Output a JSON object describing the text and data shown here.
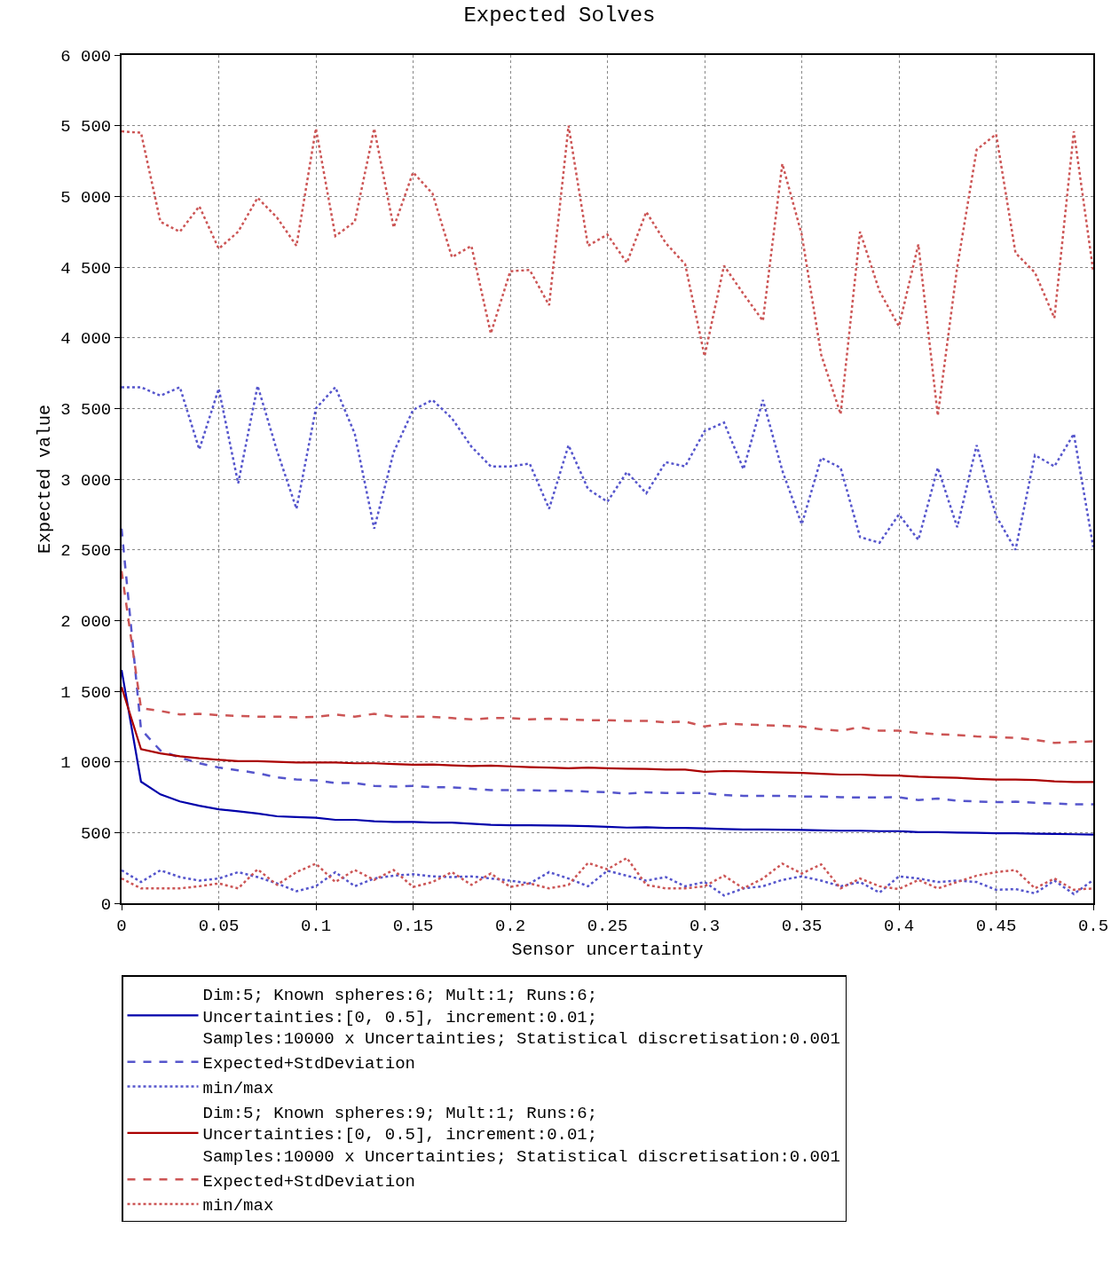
{
  "chart_data": {
    "type": "line",
    "title": "Expected Solves",
    "xlabel": "Sensor uncertainty",
    "ylabel": "Expected value",
    "x": [
      0,
      0.01,
      0.02,
      0.03,
      0.04,
      0.05,
      0.06,
      0.07,
      0.08,
      0.09,
      0.1,
      0.11,
      0.12,
      0.13,
      0.14,
      0.15,
      0.16,
      0.17,
      0.18,
      0.19,
      0.2,
      0.21,
      0.22,
      0.23,
      0.24,
      0.25,
      0.26,
      0.27,
      0.28,
      0.29,
      0.3,
      0.31,
      0.32,
      0.33,
      0.34,
      0.35,
      0.36,
      0.37,
      0.38,
      0.39,
      0.4,
      0.41,
      0.42,
      0.43,
      0.44,
      0.45,
      0.46,
      0.47,
      0.48,
      0.49,
      0.5
    ],
    "xlim": [
      0,
      0.5
    ],
    "xticks": [
      0,
      0.05,
      0.1,
      0.15,
      0.2,
      0.25,
      0.3,
      0.35,
      0.4,
      0.45,
      0.5
    ],
    "ylim": [
      0,
      6000
    ],
    "yticks": [
      0,
      500,
      {
        "value": 1000,
        "label": "1 000"
      },
      {
        "value": 1500,
        "label": "1 500"
      },
      {
        "value": 2000,
        "label": "2 000"
      },
      {
        "value": 2500,
        "label": "2 500"
      },
      {
        "value": 3000,
        "label": "3 000"
      },
      {
        "value": 3500,
        "label": "3 500"
      },
      {
        "value": 4000,
        "label": "4 000"
      },
      {
        "value": 4500,
        "label": "4 500"
      },
      {
        "value": 5000,
        "label": "5 000"
      },
      {
        "value": 5500,
        "label": "5 500"
      },
      {
        "value": 6000,
        "label": "6 000"
      }
    ],
    "grid": true,
    "legend": "bottom",
    "marker": "none",
    "series": [
      {
        "name": "Dim:5; Known spheres:6; Mult:1; Runs:6;\nUncertainties:[0, 0.5], increment:0.01;\nSamples:10000 x Uncertainties; Statistical discretisation:0.001",
        "color": "#0000aa",
        "line_style": "solid",
        "values": [
          1650,
          860,
          770,
          720,
          690,
          665,
          650,
          635,
          615,
          610,
          605,
          590,
          590,
          580,
          575,
          575,
          570,
          570,
          562,
          555,
          552,
          552,
          550,
          548,
          545,
          540,
          535,
          537,
          533,
          533,
          530,
          525,
          522,
          522,
          520,
          518,
          515,
          513,
          513,
          510,
          510,
          503,
          503,
          500,
          498,
          495,
          495,
          492,
          490,
          488,
          485
        ]
      },
      {
        "name": "Expected+StdDeviation",
        "color": "#5555cc",
        "line_style": "dashed",
        "values": [
          2650,
          1230,
          1080,
          1030,
          990,
          960,
          940,
          920,
          890,
          875,
          870,
          850,
          850,
          830,
          825,
          830,
          820,
          820,
          810,
          800,
          800,
          800,
          795,
          795,
          790,
          785,
          775,
          785,
          780,
          780,
          780,
          765,
          760,
          760,
          760,
          755,
          755,
          750,
          748,
          748,
          750,
          730,
          740,
          725,
          720,
          715,
          718,
          710,
          705,
          700,
          700
        ]
      },
      {
        "name": "min/max",
        "color": "#5555cc",
        "line_style": "dotted",
        "values": [
          3650,
          3650,
          3590,
          3650,
          3210,
          3640,
          2970,
          3660,
          3200,
          2790,
          3500,
          3650,
          3320,
          2650,
          3190,
          3490,
          3560,
          3430,
          3230,
          3090,
          3090,
          3110,
          2790,
          3240,
          2930,
          2840,
          3050,
          2900,
          3120,
          3090,
          3340,
          3400,
          3070,
          3560,
          3060,
          2680,
          3150,
          3080,
          2590,
          2550,
          2750,
          2570,
          3080,
          2660,
          3240,
          2740,
          2500,
          3170,
          3090,
          3320,
          2520
        ]
      },
      {
        "color": "#5555cc",
        "line_style": "dotted",
        "values": [
          233,
          150,
          233,
          185,
          160,
          175,
          220,
          185,
          140,
          85,
          120,
          220,
          120,
          175,
          195,
          205,
          190,
          185,
          190,
          175,
          160,
          140,
          220,
          175,
          120,
          230,
          195,
          160,
          185,
          120,
          150,
          55,
          105,
          120,
          165,
          190,
          160,
          120,
          150,
          75,
          190,
          175,
          150,
          160,
          150,
          95,
          100,
          70,
          160,
          65,
          165
        ]
      },
      {
        "name": "Dim:5; Known spheres:9; Mult:1; Runs:6;\nUncertainties:[0, 0.5], increment:0.01;\nSamples:10000 x Uncertainties; Statistical discretisation:0.001",
        "color": "#aa0000",
        "line_style": "solid",
        "values": [
          1530,
          1090,
          1060,
          1040,
          1025,
          1015,
          1005,
          1005,
          1000,
          995,
          995,
          995,
          990,
          990,
          985,
          980,
          982,
          975,
          970,
          973,
          968,
          963,
          960,
          955,
          960,
          955,
          952,
          950,
          945,
          945,
          930,
          935,
          933,
          928,
          925,
          922,
          915,
          910,
          910,
          905,
          903,
          895,
          890,
          887,
          880,
          875,
          875,
          872,
          862,
          858,
          858
        ]
      },
      {
        "name": "Expected+StdDeviation",
        "color": "#cc5555",
        "line_style": "dashed",
        "values": [
          2350,
          1380,
          1360,
          1335,
          1340,
          1330,
          1325,
          1320,
          1320,
          1315,
          1318,
          1335,
          1320,
          1340,
          1320,
          1320,
          1318,
          1310,
          1300,
          1310,
          1310,
          1300,
          1305,
          1300,
          1295,
          1295,
          1290,
          1290,
          1280,
          1285,
          1250,
          1270,
          1265,
          1260,
          1255,
          1250,
          1230,
          1220,
          1245,
          1220,
          1220,
          1205,
          1195,
          1190,
          1180,
          1175,
          1170,
          1155,
          1135,
          1140,
          1145
        ]
      },
      {
        "name": "min/max",
        "color": "#cc5555",
        "line_style": "dotted",
        "values": [
          5460,
          5450,
          4820,
          4750,
          4930,
          4630,
          4750,
          4990,
          4850,
          4650,
          5480,
          4720,
          4820,
          5480,
          4780,
          5170,
          5020,
          4570,
          4650,
          4030,
          4470,
          4480,
          4230,
          5500,
          4650,
          4730,
          4530,
          4890,
          4670,
          4520,
          3870,
          4510,
          4310,
          4120,
          5230,
          4730,
          3880,
          3460,
          4750,
          4330,
          4080,
          4660,
          3450,
          4500,
          5330,
          5440,
          4600,
          4460,
          4140,
          5460,
          4470
        ]
      },
      {
        "color": "#cc5555",
        "line_style": "dotted",
        "values": [
          175,
          105,
          105,
          105,
          120,
          140,
          105,
          240,
          130,
          220,
          280,
          150,
          235,
          165,
          235,
          115,
          150,
          220,
          130,
          210,
          115,
          140,
          105,
          130,
          285,
          240,
          320,
          130,
          105,
          105,
          120,
          195,
          105,
          175,
          280,
          210,
          275,
          105,
          175,
          120,
          100,
          165,
          105,
          150,
          195,
          220,
          235,
          105,
          175,
          95,
          105
        ]
      }
    ]
  }
}
